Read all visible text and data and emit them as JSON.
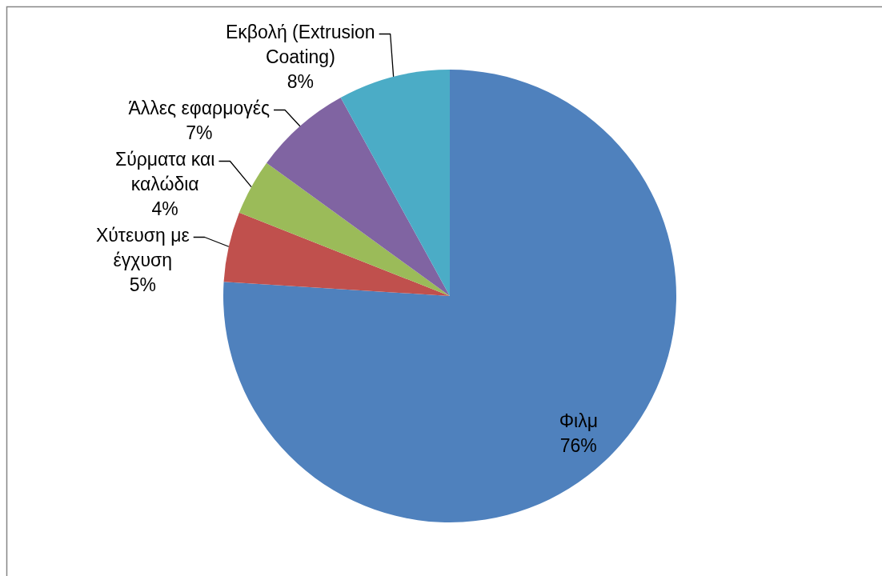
{
  "chart_data": {
    "type": "pie",
    "categories": [
      "Φιλμ",
      "Χύτευση με έγχυση",
      "Σύρματα και καλώδια",
      "Άλλες εφαρμογές",
      "Εκβολή (Extrusion Coating)"
    ],
    "values": [
      76,
      5,
      4,
      7,
      8
    ],
    "value_labels": [
      "76%",
      "5%",
      "4%",
      "7%",
      "8%"
    ],
    "colors": [
      "#4f81bd",
      "#c0504d",
      "#9bbb59",
      "#8064a2",
      "#4bacc6"
    ]
  }
}
